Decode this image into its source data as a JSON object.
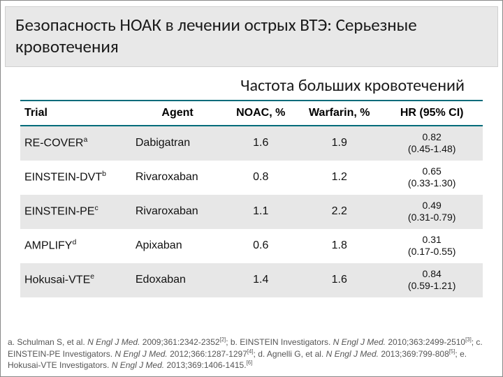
{
  "title": "Безопасность НОАК в лечении острых ВТЭ: Серьезные кровотечения",
  "subtitle": "Частота больших кровотечений",
  "table": {
    "headers": {
      "trial": "Trial",
      "agent": "Agent",
      "noac": "NOAC, %",
      "warfarin": "Warfarin, %",
      "hr": "HR (95% CI)"
    },
    "rows": [
      {
        "trial": "RE-COVER",
        "sup": "a",
        "agent": "Dabigatran",
        "noac": "1.6",
        "warfarin": "1.9",
        "hr_val": "0.82",
        "hr_ci": "(0.45-1.48)",
        "band": "grey"
      },
      {
        "trial": "EINSTEIN-DVT",
        "sup": "b",
        "agent": "Rivaroxaban",
        "noac": "0.8",
        "warfarin": "1.2",
        "hr_val": "0.65",
        "hr_ci": "(0.33-1.30)",
        "band": "white"
      },
      {
        "trial": "EINSTEIN-PE",
        "sup": "c",
        "agent": "Rivaroxaban",
        "noac": "1.1",
        "warfarin": "2.2",
        "hr_val": "0.49",
        "hr_ci": "(0.31-0.79)",
        "band": "grey"
      },
      {
        "trial": "AMPLIFY",
        "sup": "d",
        "agent": "Apixaban",
        "noac": "0.6",
        "warfarin": "1.8",
        "hr_val": "0.31",
        "hr_ci": "(0.17-0.55)",
        "band": "white"
      },
      {
        "trial": "Hokusai-VTE",
        "sup": "e",
        "agent": "Edoxaban",
        "noac": "1.4",
        "warfarin": "1.6",
        "hr_val": "0.84",
        "hr_ci": "(0.59-1.21)",
        "band": "grey"
      }
    ]
  },
  "footnotes": {
    "a_pre": "a. Schulman S, et al. ",
    "a_j": "N Engl J Med.",
    "a_post": " 2009;361:2342-2352",
    "a_ref": "[2]",
    "b_pre": "; b. EINSTEIN Investigators. ",
    "b_j": "N Engl J Med.",
    "b_post": " 2010;363:2499-2510",
    "b_ref": "[3]",
    "c_pre": "; c. EINSTEIN-PE Investigators. ",
    "c_j": "N Engl J Med.",
    "c_post": " 2012;366:1287-1297",
    "c_ref": "[4]",
    "d_pre": "; d. Agnelli G, et al. ",
    "d_j": "N Engl J Med.",
    "d_post": " 2013;369:799-808",
    "d_ref": "[5]",
    "e_pre": "; e. Hokusai-VTE Investigators. ",
    "e_j": "N Engl J Med.",
    "e_post": " 2013;369:1406-1415.",
    "e_ref": "[6]"
  }
}
